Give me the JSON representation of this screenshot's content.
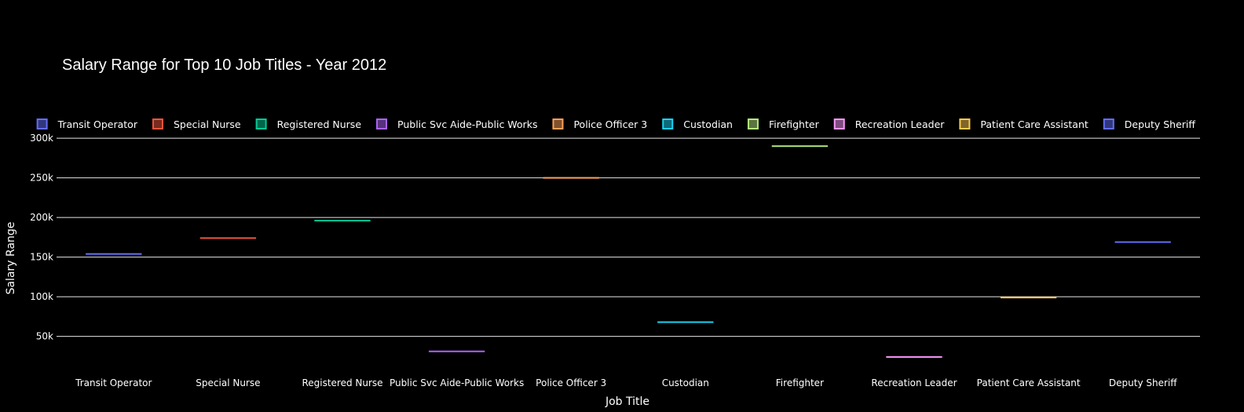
{
  "chart_data": {
    "type": "box",
    "title": "Salary Range for Top 10 Job Titles - Year 2012",
    "xlabel": "Job Title",
    "ylabel": "Salary Range",
    "ylim": [
      12000,
      314000
    ],
    "yticks": [
      50000,
      100000,
      150000,
      200000,
      250000,
      300000
    ],
    "ytick_labels": [
      "50k",
      "100k",
      "150k",
      "200k",
      "250k",
      "300k"
    ],
    "grid": true,
    "legend_position": "top",
    "categories": [
      "Transit Operator",
      "Special Nurse",
      "Registered Nurse",
      "Public Svc Aide-Public Works",
      "Police Officer 3",
      "Custodian",
      "Firefighter",
      "Recreation Leader",
      "Patient Care Assistant",
      "Deputy Sheriff"
    ],
    "series": [
      {
        "name": "Transit Operator",
        "value": 154000,
        "color": "#636efa"
      },
      {
        "name": "Special Nurse",
        "value": 174000,
        "color": "#ef553b"
      },
      {
        "name": "Registered Nurse",
        "value": 196000,
        "color": "#00cc96"
      },
      {
        "name": "Public Svc Aide-Public Works",
        "value": 31000,
        "color": "#ab63fa"
      },
      {
        "name": "Police Officer 3",
        "value": 250000,
        "color": "#ffa15a"
      },
      {
        "name": "Custodian",
        "value": 68000,
        "color": "#19d3f3"
      },
      {
        "name": "Firefighter",
        "value": 290000,
        "color": "#b6e880"
      },
      {
        "name": "Recreation Leader",
        "value": 24000,
        "color": "#ff97ff"
      },
      {
        "name": "Patient Care Assistant",
        "value": 99000,
        "color": "#fecb52"
      },
      {
        "name": "Deputy Sheriff",
        "value": 169000,
        "color": "#636efa"
      }
    ]
  }
}
